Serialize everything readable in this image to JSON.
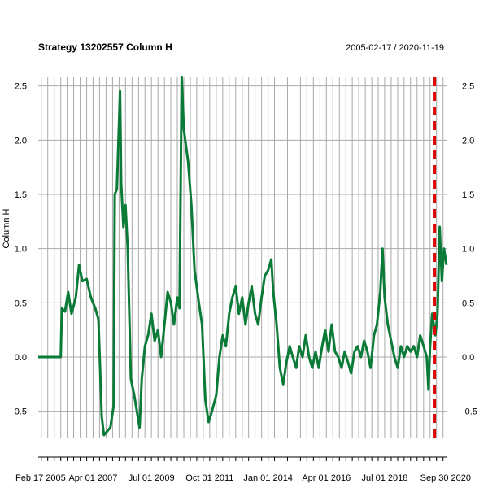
{
  "chart_data": {
    "type": "line",
    "title": "Strategy 13202557 Column H",
    "date_range": "2005-02-17 / 2020-11-19",
    "ylabel": "Column H",
    "ylim": [
      -0.75,
      2.58
    ],
    "yticks": [
      -0.5,
      0.0,
      0.5,
      1.0,
      1.5,
      2.0,
      2.5
    ],
    "ytick_labels": [
      "-0.5",
      "0.0",
      "0.5",
      "1.0",
      "1.5",
      "2.0",
      "2.5"
    ],
    "xlim": [
      "2005-02-17",
      "2020-11-19"
    ],
    "xtick_labels": [
      "Feb 17 2005",
      "Apr 01 2007",
      "Jul 01 2009",
      "Oct 01 2011",
      "Jan 01 2014",
      "Apr 01 2016",
      "Jul 01 2018",
      "Sep 30 2020"
    ],
    "xtick_dates": [
      "2005-02-17",
      "2007-04-01",
      "2009-07-01",
      "2011-10-01",
      "2014-01-01",
      "2016-04-01",
      "2018-07-01",
      "2020-09-30"
    ],
    "grid": true,
    "line_color": "#0a7a37",
    "marker_color": "#e00000",
    "marker_date": "2020-06-01",
    "series": [
      {
        "values": [
          [
            "2005-02-17",
            0.0
          ],
          [
            "2005-12-01",
            0.0
          ],
          [
            "2006-01-01",
            0.0
          ],
          [
            "2006-01-15",
            0.45
          ],
          [
            "2006-03-01",
            0.42
          ],
          [
            "2006-04-15",
            0.6
          ],
          [
            "2006-06-01",
            0.4
          ],
          [
            "2006-08-01",
            0.55
          ],
          [
            "2006-09-15",
            0.85
          ],
          [
            "2006-11-01",
            0.7
          ],
          [
            "2007-01-01",
            0.72
          ],
          [
            "2007-03-01",
            0.55
          ],
          [
            "2007-05-01",
            0.45
          ],
          [
            "2007-06-15",
            0.35
          ],
          [
            "2007-08-01",
            -0.55
          ],
          [
            "2007-09-01",
            -0.72
          ],
          [
            "2007-12-01",
            -0.65
          ],
          [
            "2008-01-15",
            -0.45
          ],
          [
            "2008-02-01",
            1.5
          ],
          [
            "2008-03-01",
            1.55
          ],
          [
            "2008-04-15",
            2.45
          ],
          [
            "2008-05-01",
            1.6
          ],
          [
            "2008-06-01",
            1.2
          ],
          [
            "2008-07-01",
            1.4
          ],
          [
            "2008-08-01",
            1.0
          ],
          [
            "2008-09-15",
            -0.2
          ],
          [
            "2008-11-01",
            -0.35
          ],
          [
            "2009-01-15",
            -0.65
          ],
          [
            "2009-02-15",
            -0.2
          ],
          [
            "2009-04-01",
            0.1
          ],
          [
            "2009-05-15",
            0.2
          ],
          [
            "2009-07-01",
            0.4
          ],
          [
            "2009-08-15",
            0.15
          ],
          [
            "2009-10-01",
            0.25
          ],
          [
            "2009-11-15",
            0.0
          ],
          [
            "2010-01-01",
            0.3
          ],
          [
            "2010-02-15",
            0.6
          ],
          [
            "2010-04-01",
            0.5
          ],
          [
            "2010-05-15",
            0.3
          ],
          [
            "2010-07-01",
            0.55
          ],
          [
            "2010-08-01",
            0.45
          ],
          [
            "2010-09-01",
            2.58
          ],
          [
            "2010-10-01",
            2.1
          ],
          [
            "2010-12-01",
            1.8
          ],
          [
            "2011-01-15",
            1.4
          ],
          [
            "2011-03-01",
            0.8
          ],
          [
            "2011-05-01",
            0.5
          ],
          [
            "2011-06-15",
            0.3
          ],
          [
            "2011-08-01",
            -0.4
          ],
          [
            "2011-09-15",
            -0.6
          ],
          [
            "2011-11-01",
            -0.5
          ],
          [
            "2012-01-01",
            -0.35
          ],
          [
            "2012-02-15",
            0.0
          ],
          [
            "2012-04-01",
            0.2
          ],
          [
            "2012-05-15",
            0.1
          ],
          [
            "2012-07-01",
            0.4
          ],
          [
            "2012-08-15",
            0.55
          ],
          [
            "2012-10-01",
            0.65
          ],
          [
            "2012-11-15",
            0.4
          ],
          [
            "2013-01-01",
            0.55
          ],
          [
            "2013-02-15",
            0.3
          ],
          [
            "2013-04-01",
            0.5
          ],
          [
            "2013-05-15",
            0.65
          ],
          [
            "2013-07-01",
            0.4
          ],
          [
            "2013-08-15",
            0.3
          ],
          [
            "2013-10-01",
            0.55
          ],
          [
            "2013-11-15",
            0.75
          ],
          [
            "2014-01-01",
            0.8
          ],
          [
            "2014-02-15",
            0.9
          ],
          [
            "2014-03-15",
            0.6
          ],
          [
            "2014-05-01",
            0.3
          ],
          [
            "2014-06-15",
            -0.1
          ],
          [
            "2014-08-01",
            -0.25
          ],
          [
            "2014-09-15",
            -0.05
          ],
          [
            "2014-11-01",
            0.1
          ],
          [
            "2014-12-15",
            0.0
          ],
          [
            "2015-02-01",
            -0.1
          ],
          [
            "2015-03-15",
            0.1
          ],
          [
            "2015-05-01",
            0.0
          ],
          [
            "2015-06-15",
            0.2
          ],
          [
            "2015-08-01",
            0.0
          ],
          [
            "2015-09-15",
            -0.1
          ],
          [
            "2015-11-01",
            0.05
          ],
          [
            "2015-12-15",
            -0.1
          ],
          [
            "2016-02-01",
            0.1
          ],
          [
            "2016-03-15",
            0.25
          ],
          [
            "2016-05-01",
            0.05
          ],
          [
            "2016-06-15",
            0.3
          ],
          [
            "2016-08-01",
            0.05
          ],
          [
            "2016-09-15",
            0.0
          ],
          [
            "2016-11-01",
            -0.1
          ],
          [
            "2016-12-15",
            0.05
          ],
          [
            "2017-02-01",
            -0.05
          ],
          [
            "2017-03-15",
            -0.15
          ],
          [
            "2017-05-01",
            0.05
          ],
          [
            "2017-06-15",
            0.1
          ],
          [
            "2017-08-01",
            0.0
          ],
          [
            "2017-09-15",
            0.15
          ],
          [
            "2017-11-01",
            0.05
          ],
          [
            "2017-12-15",
            -0.1
          ],
          [
            "2018-02-01",
            0.2
          ],
          [
            "2018-03-15",
            0.3
          ],
          [
            "2018-05-01",
            0.6
          ],
          [
            "2018-06-01",
            1.0
          ],
          [
            "2018-07-01",
            0.55
          ],
          [
            "2018-08-15",
            0.3
          ],
          [
            "2018-10-01",
            0.15
          ],
          [
            "2018-11-15",
            0.0
          ],
          [
            "2019-01-01",
            -0.1
          ],
          [
            "2019-02-15",
            0.1
          ],
          [
            "2019-04-01",
            0.0
          ],
          [
            "2019-05-15",
            0.1
          ],
          [
            "2019-07-01",
            0.05
          ],
          [
            "2019-08-15",
            0.1
          ],
          [
            "2019-10-01",
            0.0
          ],
          [
            "2019-11-15",
            0.2
          ],
          [
            "2020-01-01",
            0.1
          ],
          [
            "2020-02-15",
            0.0
          ],
          [
            "2020-03-10",
            -0.3
          ],
          [
            "2020-04-01",
            0.1
          ],
          [
            "2020-05-01",
            0.4
          ],
          [
            "2020-06-15",
            0.2
          ],
          [
            "2020-07-15",
            0.4
          ],
          [
            "2020-08-15",
            1.2
          ],
          [
            "2020-09-15",
            0.7
          ],
          [
            "2020-10-15",
            1.0
          ],
          [
            "2020-11-19",
            0.85
          ]
        ]
      }
    ]
  }
}
